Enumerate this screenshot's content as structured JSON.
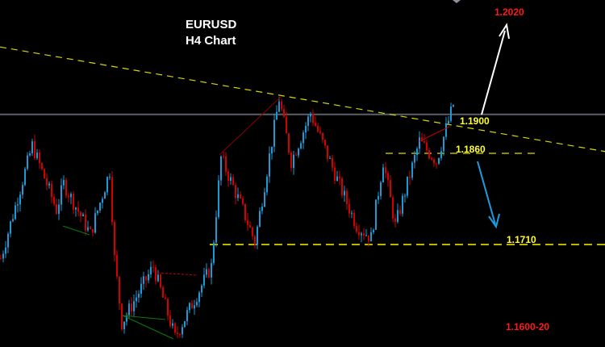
{
  "chart_data": {
    "type": "candlestick",
    "title": "EURUSD",
    "subtitle": "H4 Chart",
    "colors": {
      "up": "#1a9ad6",
      "down": "#d40000",
      "background": "#000000",
      "level": "#e6e600",
      "target_up": "#ff0000",
      "arrow_up": "#ffffff",
      "arrow_down": "#1e9be0"
    },
    "price_path": [
      [
        0,
        1.1687
      ],
      [
        13,
        1.1873
      ],
      [
        23,
        1.1767
      ],
      [
        26,
        1.181
      ],
      [
        37,
        1.1727
      ],
      [
        45,
        1.1831
      ],
      [
        47,
        1.1687
      ],
      [
        50,
        1.1581
      ],
      [
        63,
        1.1674
      ],
      [
        72,
        1.1557
      ],
      [
        87,
        1.1674
      ],
      [
        91,
        1.1853
      ],
      [
        100,
        1.1767
      ],
      [
        105,
        1.1714
      ],
      [
        115,
        1.195
      ],
      [
        120,
        1.1847
      ],
      [
        128,
        1.1926
      ],
      [
        140,
        1.1807
      ],
      [
        147,
        1.1741
      ],
      [
        153,
        1.1721
      ],
      [
        158,
        1.1847
      ],
      [
        163,
        1.1741
      ],
      [
        173,
        1.188
      ],
      [
        180,
        1.1847
      ],
      [
        187,
        1.194
      ]
    ],
    "resistance_trendline": {
      "start": 1.2035,
      "end": 1.1863
    },
    "current_price_line": 1.1924,
    "levels": [
      {
        "label": "1.1900",
        "price": 1.19
      },
      {
        "label": "1.1860",
        "price": 1.186
      },
      {
        "label": "1.1710",
        "price": 1.171
      }
    ],
    "targets": {
      "up": "1.2020",
      "down": "1.1600-20"
    }
  }
}
